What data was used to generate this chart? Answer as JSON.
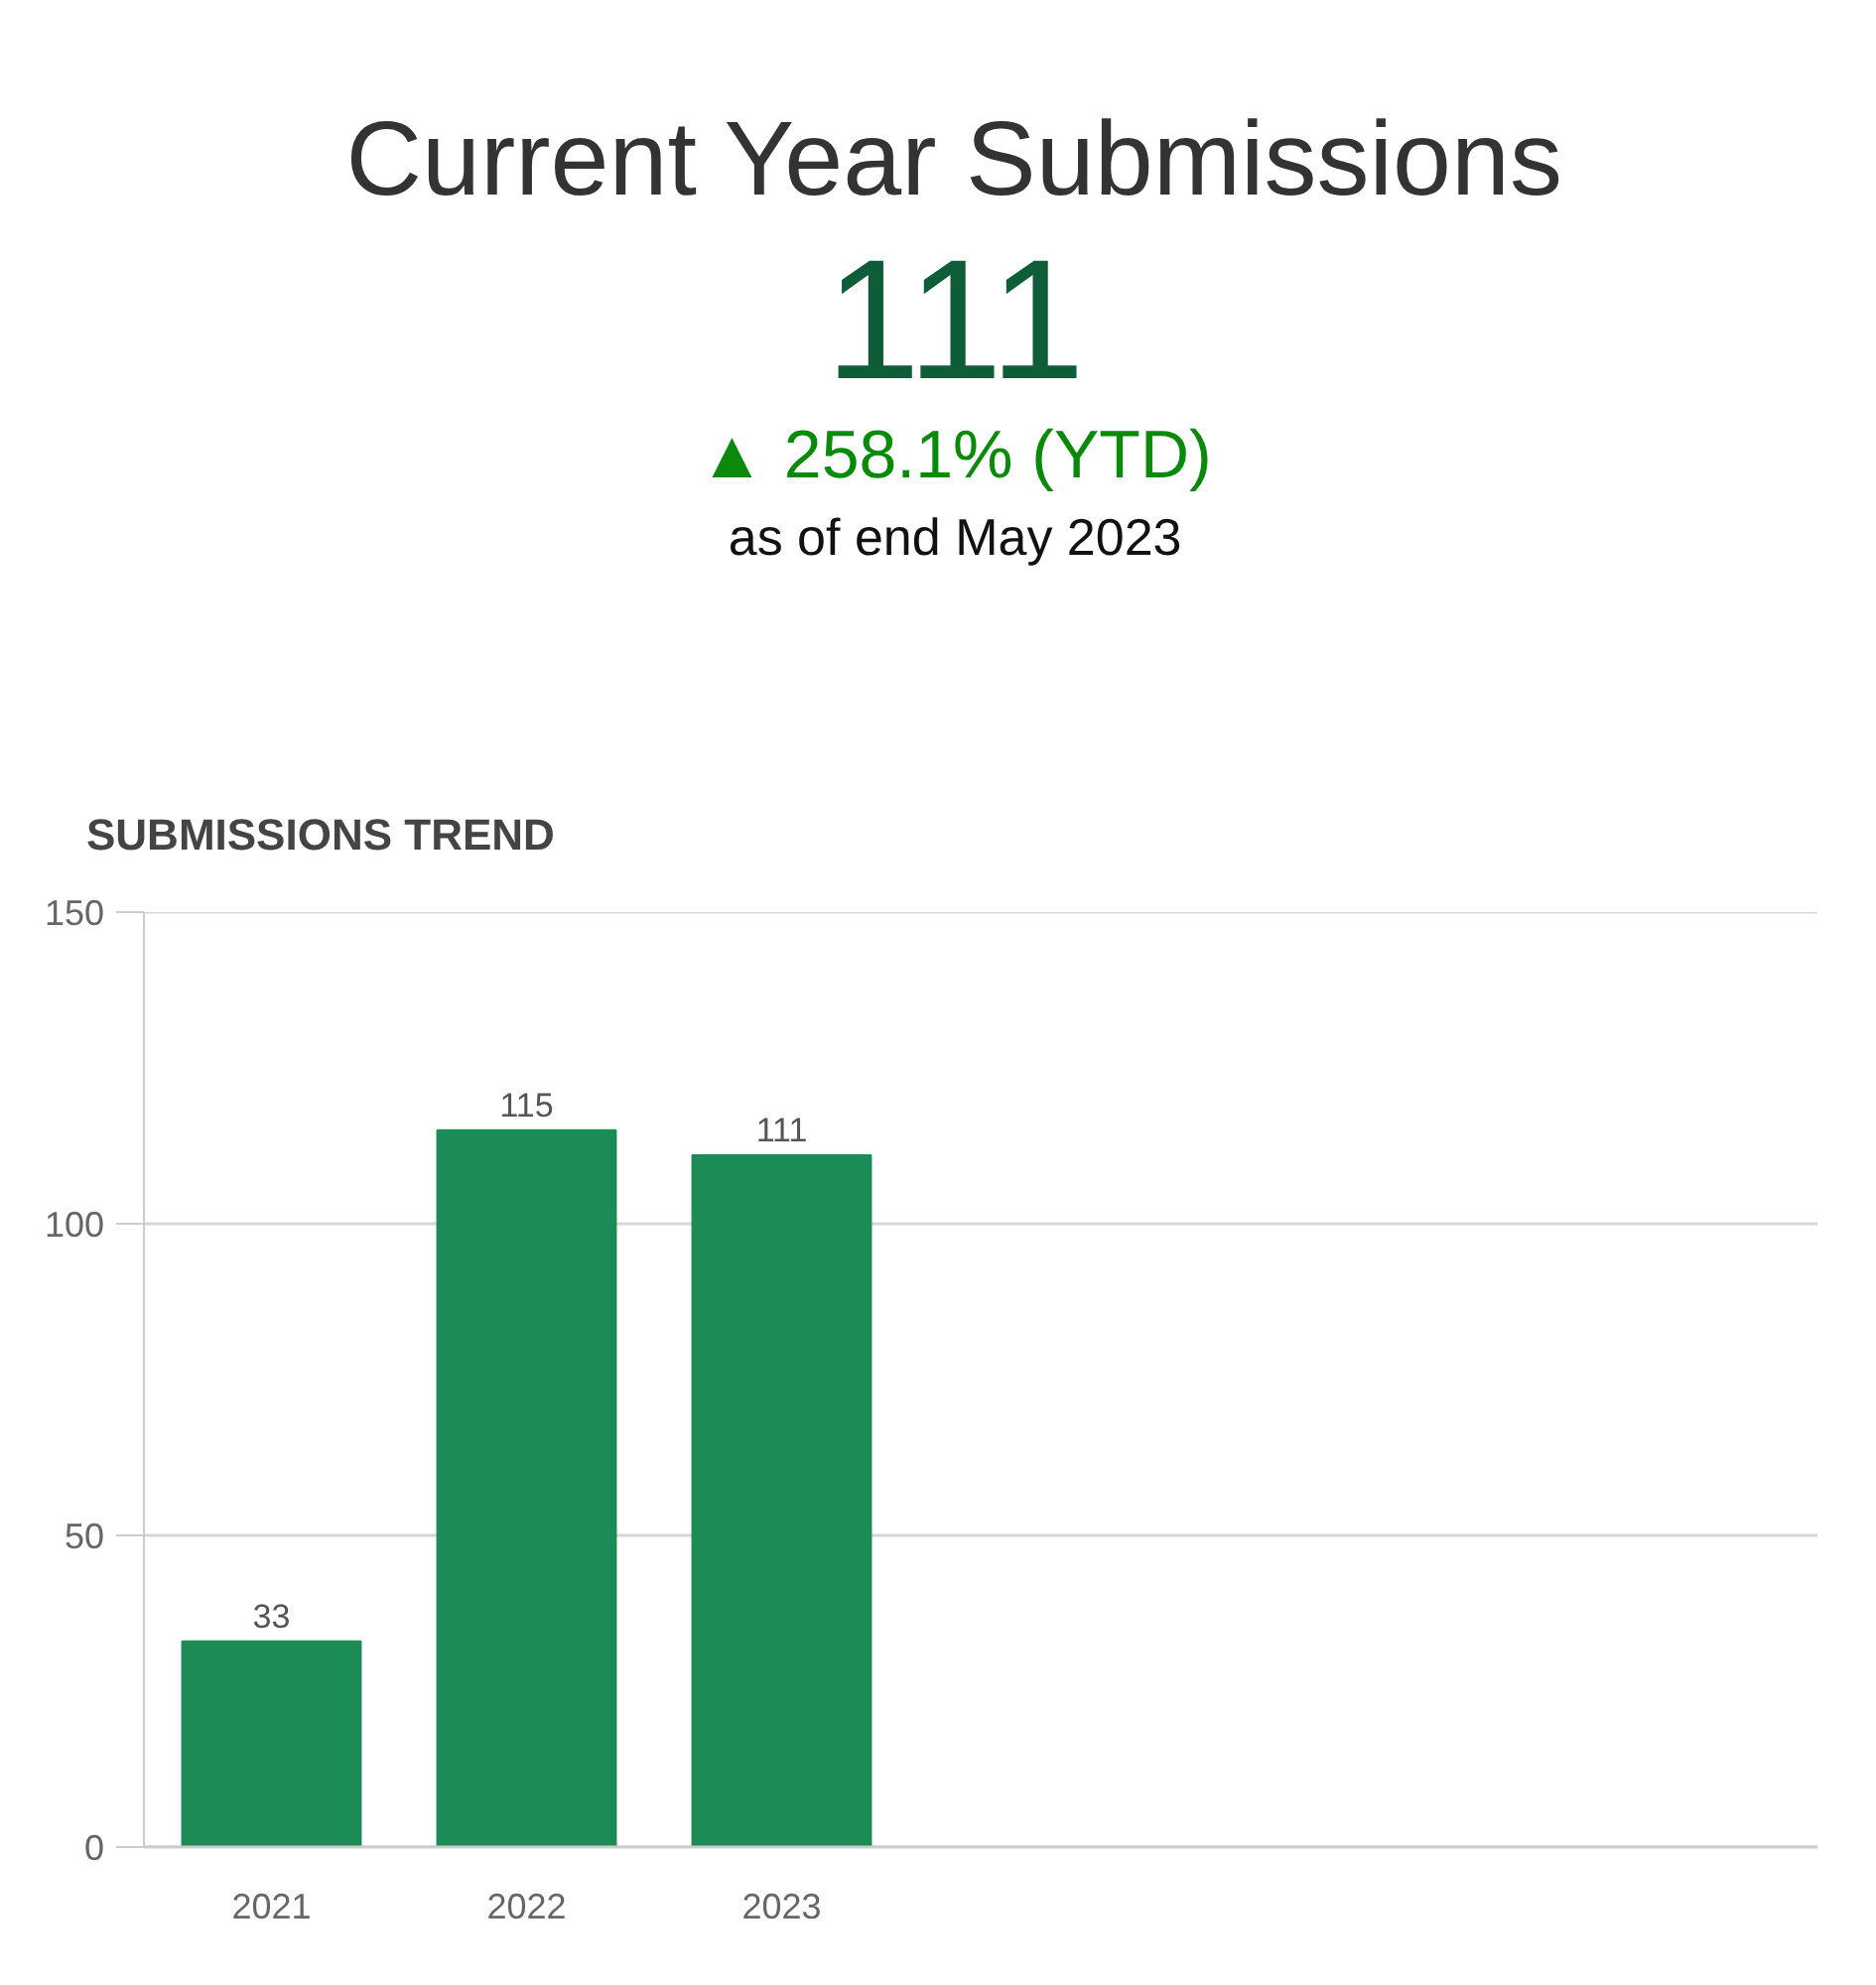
{
  "chart_data": [
    {
      "type": "other",
      "title": "Current Year Submissions",
      "annotations": [
        "111",
        "▲ 258.1% (YTD)",
        "as of end May 2023"
      ]
    },
    {
      "type": "bar",
      "title": "SUBMISSIONS TREND",
      "categories": [
        "2021",
        "2022",
        "2023"
      ],
      "values": [
        33,
        115,
        111
      ],
      "color": "#1b8c55",
      "ylim": [
        0,
        150
      ],
      "yticks": [
        0,
        50,
        100,
        150
      ],
      "grid": "y",
      "data_labels": true
    }
  ]
}
